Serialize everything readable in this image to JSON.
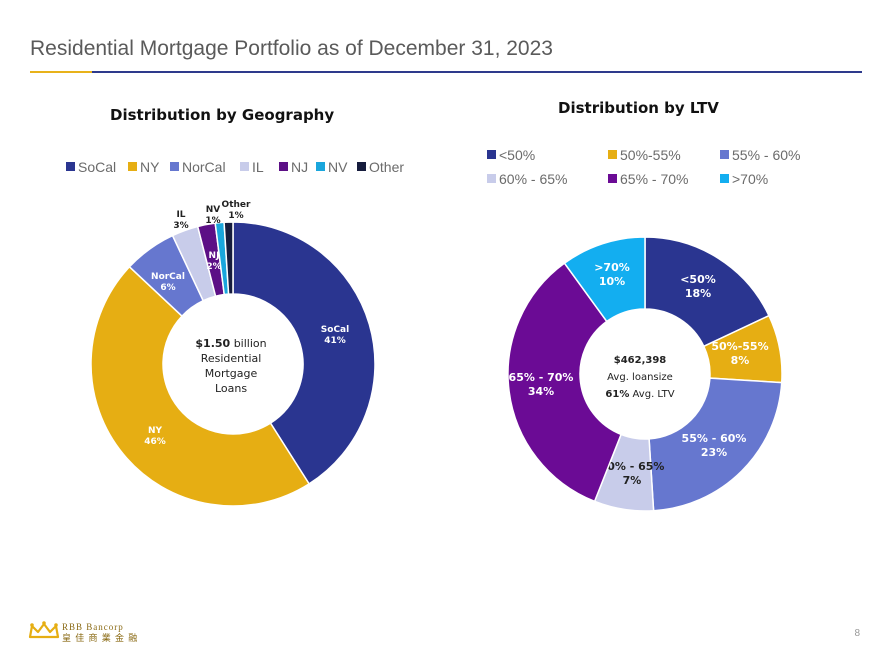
{
  "page": {
    "title": "Residential Mortgage Portfolio as of December 31, 2023",
    "page_number": "8",
    "logo": {
      "name_line1": "RBB Bancorp",
      "name_line2": "皇 佳 商 業 金 融"
    },
    "accent_colors": {
      "gold": "#e8b21a",
      "navy": "#2e3a8c"
    }
  },
  "geo_center": {
    "amount": "$1.50",
    "l1": "billion",
    "l2": "Residential",
    "l3": "Mortgage",
    "l4": "Loans"
  },
  "ltv_center": {
    "amount": "$462,398",
    "l1": "Avg. loansize",
    "ltv_value": "61%",
    "ltv_label": "Avg. LTV"
  },
  "chart_data": [
    {
      "type": "pie",
      "title": "Distribution by Geography",
      "legend_position": "top",
      "slices": [
        {
          "label": "SoCal",
          "name": "SoCal",
          "value": 41,
          "pct": "41%",
          "color": "#2a3590",
          "label_color": "#ffffff"
        },
        {
          "label": "NY",
          "name": "NY",
          "value": 46,
          "pct": "46%",
          "color": "#e6ae13",
          "label_color": "#ffffff"
        },
        {
          "label": "NorCal",
          "name": "NorCal",
          "value": 6,
          "pct": "6%",
          "color": "#6677cf",
          "label_color": "#ffffff"
        },
        {
          "label": "IL",
          "name": "IL",
          "value": 3,
          "pct": "3%",
          "color": "#c8ccea",
          "label_color": "#222222"
        },
        {
          "label": "NJ",
          "name": "NJ",
          "value": 2,
          "pct": "2%",
          "color": "#5c0f86",
          "label_color": "#ffffff"
        },
        {
          "label": "NV",
          "name": "NV",
          "value": 1,
          "pct": "1%",
          "color": "#1aa6dc",
          "label_color": "#222222"
        },
        {
          "label": "Other",
          "name": "Other",
          "value": 1,
          "pct": "1%",
          "color": "#161c3d",
          "label_color": "#222222"
        }
      ]
    },
    {
      "type": "pie",
      "title": "Distribution by LTV",
      "legend_position": "top",
      "slices": [
        {
          "label": "<50%",
          "name": "<50%",
          "value": 18,
          "pct": "18%",
          "color": "#2a3590",
          "label_color": "#ffffff"
        },
        {
          "label": "50%-55%",
          "name": "50%-55%",
          "value": 8,
          "pct": "8%",
          "color": "#e6ae13",
          "label_color": "#ffffff"
        },
        {
          "label": "55% - 60%",
          "name": "55% - 60%",
          "value": 23,
          "pct": "23%",
          "color": "#6677cf",
          "label_color": "#ffffff"
        },
        {
          "label": "60% - 65%",
          "name": "60% - 65%",
          "value": 7,
          "pct": "7%",
          "color": "#c8ccea",
          "label_color": "#222222"
        },
        {
          "label": "65% - 70%",
          "name": "65% - 70%",
          "value": 34,
          "pct": "34%",
          "color": "#6b0b95",
          "label_color": "#ffffff"
        },
        {
          "label": ">70%",
          "name": ">70%",
          "value": 10,
          "pct": "10%",
          "color": "#13aef0",
          "label_color": "#ffffff"
        }
      ]
    }
  ]
}
